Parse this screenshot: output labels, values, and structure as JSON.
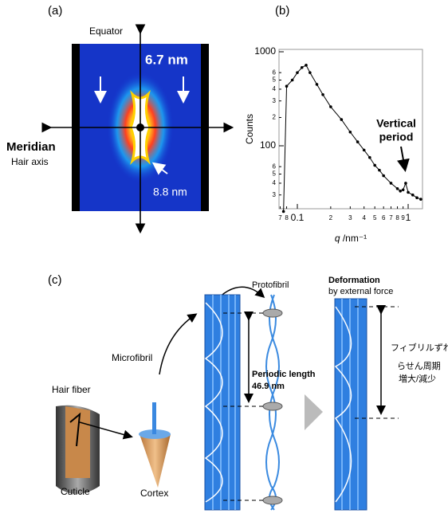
{
  "panel_a": {
    "label": "(a)",
    "equator": "Equator",
    "spacing_top": "6.7 nm",
    "meridian": "Meridian",
    "hair_axis": "Hair axis",
    "spacing_bottom": "8.8 nm"
  },
  "chart_data": {
    "type": "line",
    "panel_label": "(b)",
    "y_label": "Counts",
    "x_label_symbol": "q",
    "x_label_unit": " /nm⁻¹",
    "annotation": [
      "Vertical",
      "period"
    ],
    "x": [
      0.075,
      0.08,
      0.09,
      0.1,
      0.11,
      0.12,
      0.13,
      0.15,
      0.17,
      0.2,
      0.25,
      0.3,
      0.35,
      0.4,
      0.45,
      0.5,
      0.55,
      0.6,
      0.7,
      0.8,
      0.85,
      0.9,
      0.95,
      1.0,
      1.1,
      1.2,
      1.3
    ],
    "values": [
      20,
      430,
      500,
      600,
      680,
      720,
      600,
      450,
      350,
      260,
      190,
      140,
      110,
      90,
      75,
      62,
      55,
      48,
      40,
      35,
      33,
      34,
      40,
      32,
      30,
      28,
      27
    ],
    "color": "#000000",
    "log_x": true,
    "log_y": true,
    "xlim": [
      0.0683,
      1.347
    ],
    "ylim": [
      21.4,
      1060
    ],
    "xticks": [
      {
        "value": 0.07,
        "label": "7"
      },
      {
        "value": 0.08,
        "label": "8"
      },
      0.1,
      {
        "value": 0.2,
        "label": "2"
      },
      {
        "value": 0.3,
        "label": "3"
      },
      {
        "value": 0.4,
        "label": "4"
      },
      {
        "value": 0.5,
        "label": "5"
      },
      {
        "value": 0.6,
        "label": "6"
      },
      {
        "value": 0.7,
        "label": "7"
      },
      {
        "value": 0.8,
        "label": "8"
      },
      {
        "value": 0.9,
        "label": "9"
      },
      1
    ],
    "yticks": [
      {
        "value": 30,
        "label": "3"
      },
      {
        "value": 40,
        "label": "4"
      },
      {
        "value": 50,
        "label": "5"
      },
      {
        "value": 60,
        "label": "6"
      },
      100,
      {
        "value": 200,
        "label": "2"
      },
      {
        "value": 300,
        "label": "3"
      },
      {
        "value": 400,
        "label": "4"
      },
      {
        "value": 500,
        "label": "5"
      },
      {
        "value": 600,
        "label": "6"
      },
      1000
    ]
  },
  "panel_c": {
    "label": "(c)",
    "protofibril": "Protofibril",
    "deformation": [
      "Deformation",
      "by external force"
    ],
    "microfibril": "Microfibril",
    "hair_fiber": "Hair fiber",
    "periodic_length": [
      "Periodic length",
      "46.9 nm"
    ],
    "fibril_slip": "フィブリルずれ",
    "helix_period": "らせん周期",
    "change": "増大/減少",
    "cuticle": "Cuticle",
    "cortex": "Cortex"
  }
}
